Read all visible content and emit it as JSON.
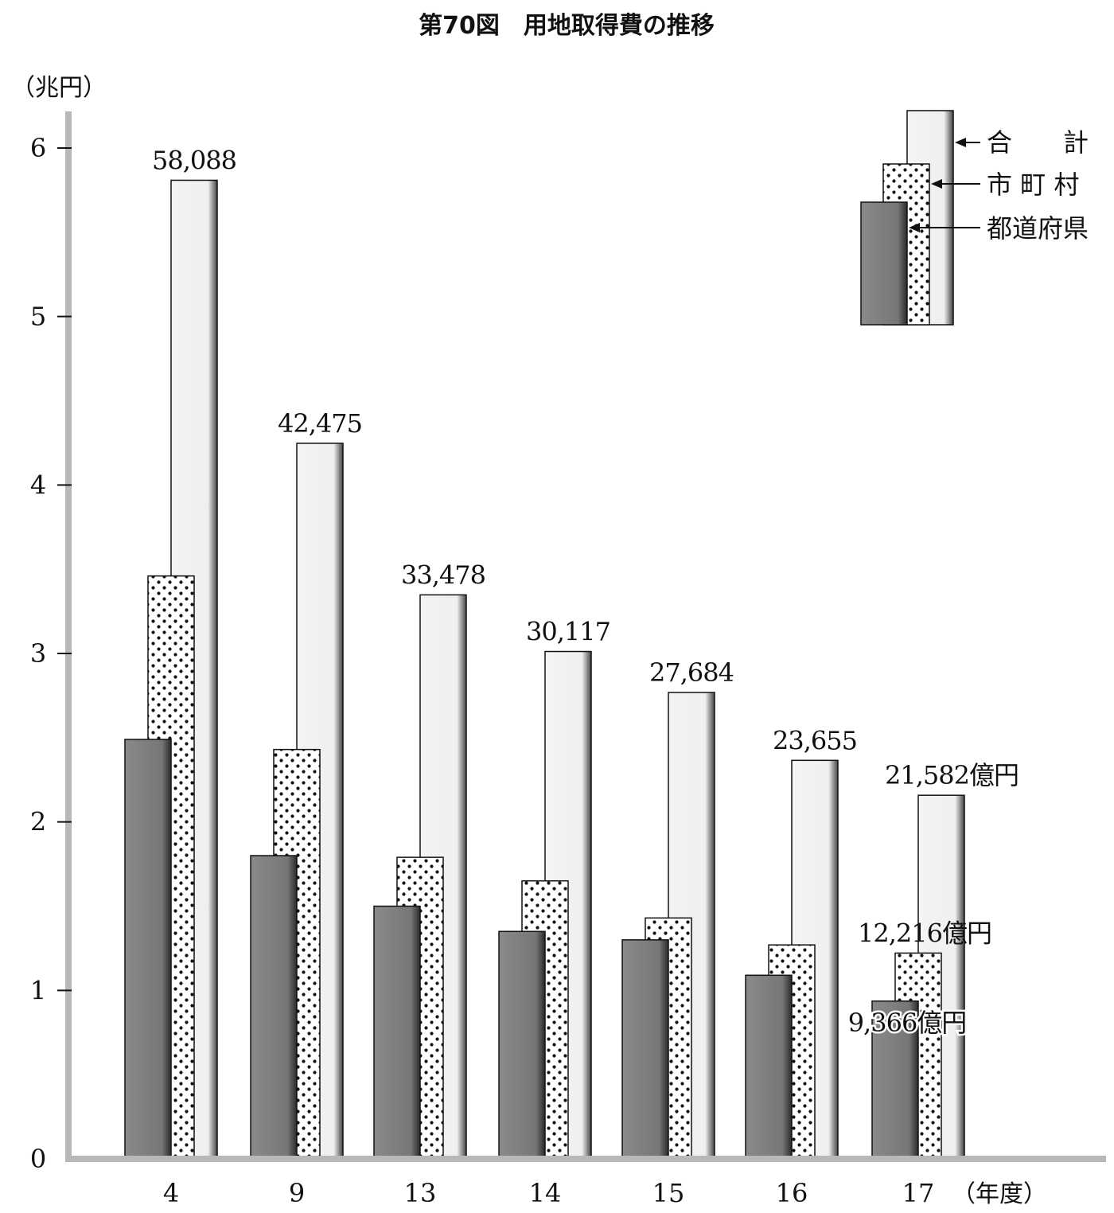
{
  "chart_data": {
    "type": "bar",
    "title": "第70図　用地取得費の推移",
    "y_unit_label": "（兆円）",
    "x_unit_label": "（年度）",
    "ylim": [
      0,
      6
    ],
    "yticks": [
      "0",
      "1",
      "2",
      "3",
      "4",
      "5",
      "6"
    ],
    "categories": [
      "4",
      "9",
      "13",
      "14",
      "15",
      "16",
      "17"
    ],
    "series": [
      {
        "name": "都道府県",
        "values": [
          2.49,
          1.8,
          1.5,
          1.35,
          1.3,
          1.09,
          0.9366
        ]
      },
      {
        "name": "市町村",
        "values": [
          3.46,
          2.43,
          1.79,
          1.65,
          1.43,
          1.27,
          1.2216
        ]
      },
      {
        "name": "合計",
        "values": [
          5.8088,
          4.2475,
          3.3478,
          3.0117,
          2.7684,
          2.3655,
          2.1582
        ]
      }
    ],
    "labels": {
      "total": [
        "58,088",
        "42,475",
        "33,478",
        "30,117",
        "27,684",
        "23,655",
        "21,582億円"
      ],
      "municipal_last": "12,216億円",
      "prefecture_last": "9,366億円"
    },
    "legend": {
      "position": "top-right",
      "entries": [
        "合　　計",
        "市 町 村",
        "都道府県"
      ]
    },
    "grid": false,
    "colors": {
      "prefecture": "#7a7a7a",
      "municipal_bg": "#ffffff",
      "municipal_dot": "#111111",
      "total": "#f0f0f0",
      "axis": "#b8b8b8"
    }
  }
}
